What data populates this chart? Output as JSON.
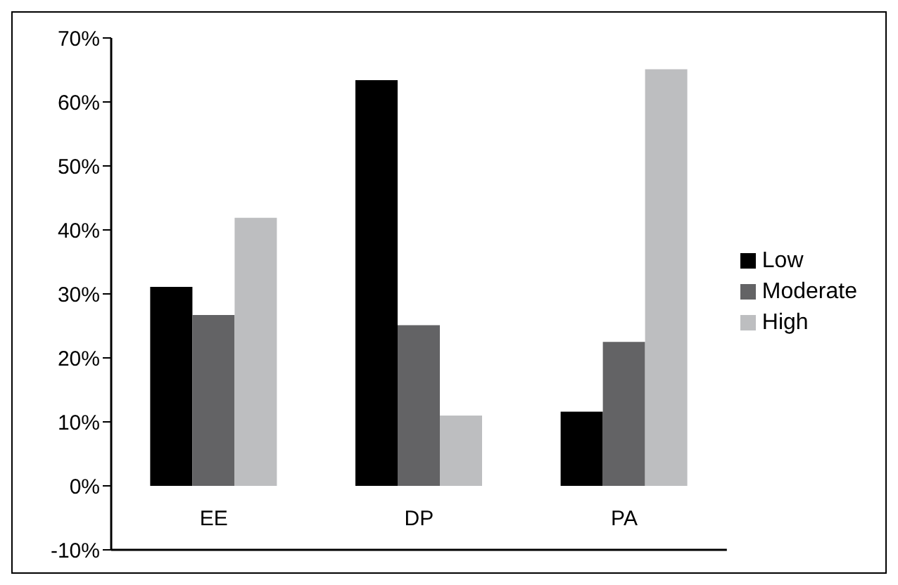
{
  "chart_data": {
    "type": "bar",
    "categories": [
      "EE",
      "DP",
      "PA"
    ],
    "series": [
      {
        "name": "Low",
        "color": "#000000",
        "values": [
          31.1,
          63.4,
          11.6
        ]
      },
      {
        "name": "Moderate",
        "color": "#636365",
        "values": [
          26.7,
          25.1,
          22.5
        ]
      },
      {
        "name": "High",
        "color": "#bdbec0",
        "values": [
          41.9,
          11.0,
          65.1
        ]
      }
    ],
    "ylim": [
      -10,
      70
    ],
    "yticks": [
      {
        "value": -10,
        "label": "-10%"
      },
      {
        "value": 0,
        "label": "0%"
      },
      {
        "value": 10,
        "label": "10%"
      },
      {
        "value": 20,
        "label": "20%"
      },
      {
        "value": 30,
        "label": "30%"
      },
      {
        "value": 40,
        "label": "40%"
      },
      {
        "value": 50,
        "label": "50%"
      },
      {
        "value": 60,
        "label": "60%"
      },
      {
        "value": 70,
        "label": "70%"
      }
    ],
    "grid": false,
    "legend": "right"
  }
}
